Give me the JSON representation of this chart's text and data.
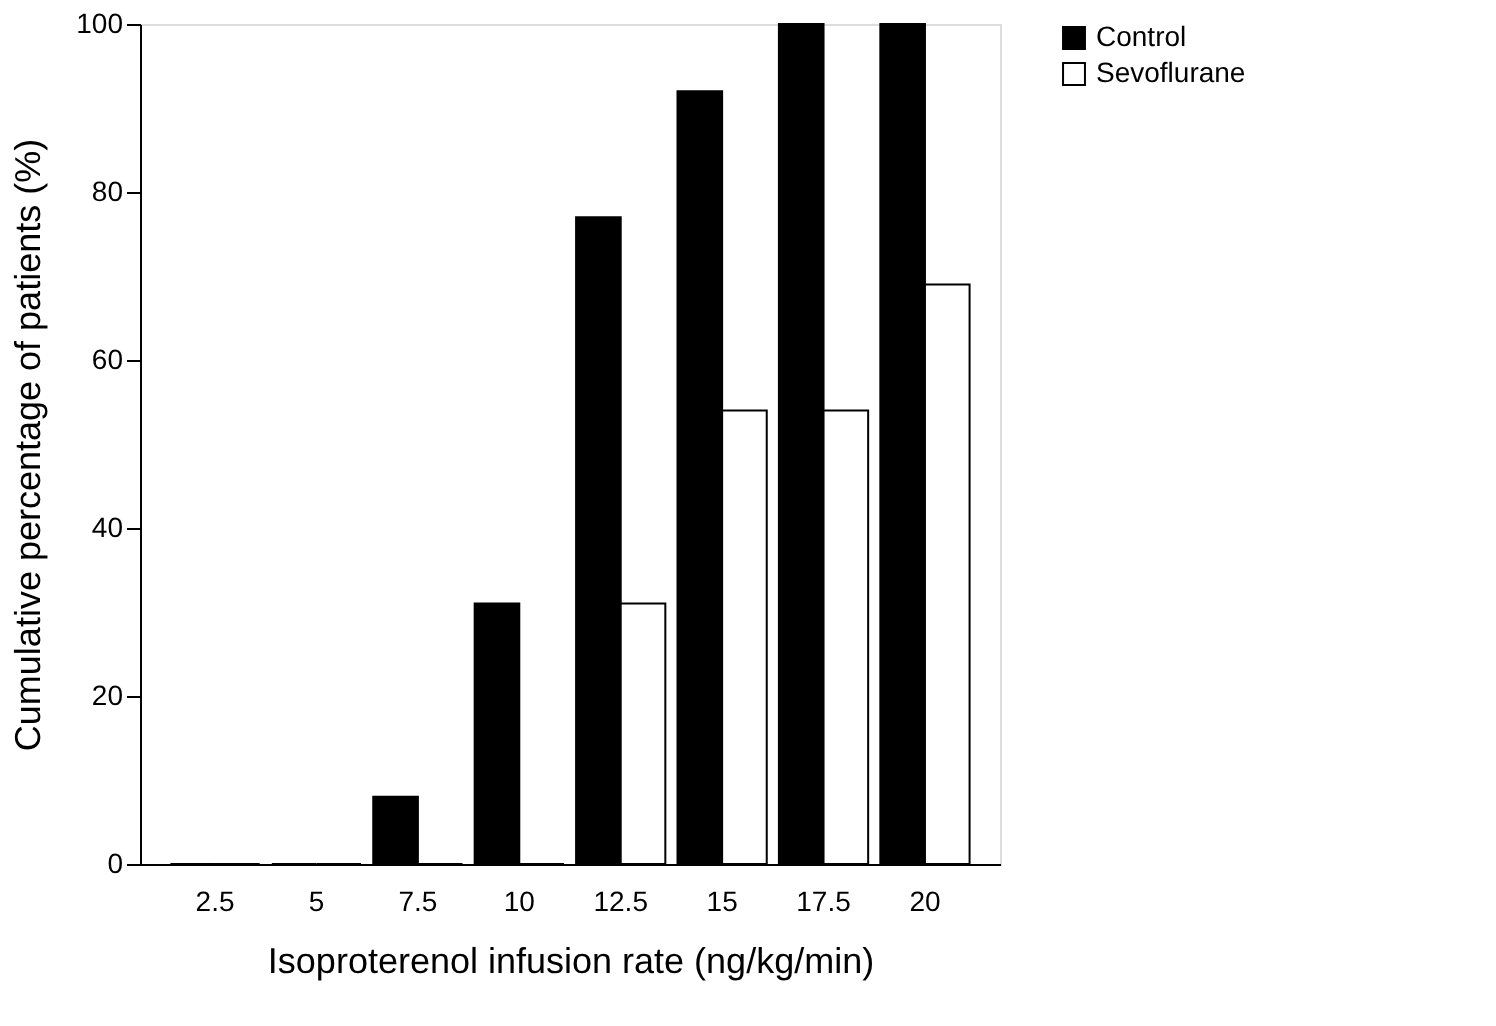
{
  "chart_data": {
    "type": "bar",
    "xlabel": "Isoproterenol infusion rate (ng/kg/min)",
    "ylabel": "Cumulative percentage of patients (%)",
    "categories": [
      "2.5",
      "5",
      "7.5",
      "10",
      "12.5",
      "15",
      "17.5",
      "20"
    ],
    "series": [
      {
        "name": "Control",
        "color": "#000000",
        "values": [
          0,
          0,
          8,
          31,
          77,
          92,
          100,
          100
        ]
      },
      {
        "name": "Sevoflurane",
        "color": "#ffffff",
        "values": [
          0,
          0,
          0,
          0,
          31,
          54,
          54,
          69
        ]
      }
    ],
    "ylim": [
      0,
      100
    ],
    "yticks": [
      0,
      20,
      40,
      60,
      80,
      100
    ],
    "grid": false,
    "legend": "right"
  }
}
